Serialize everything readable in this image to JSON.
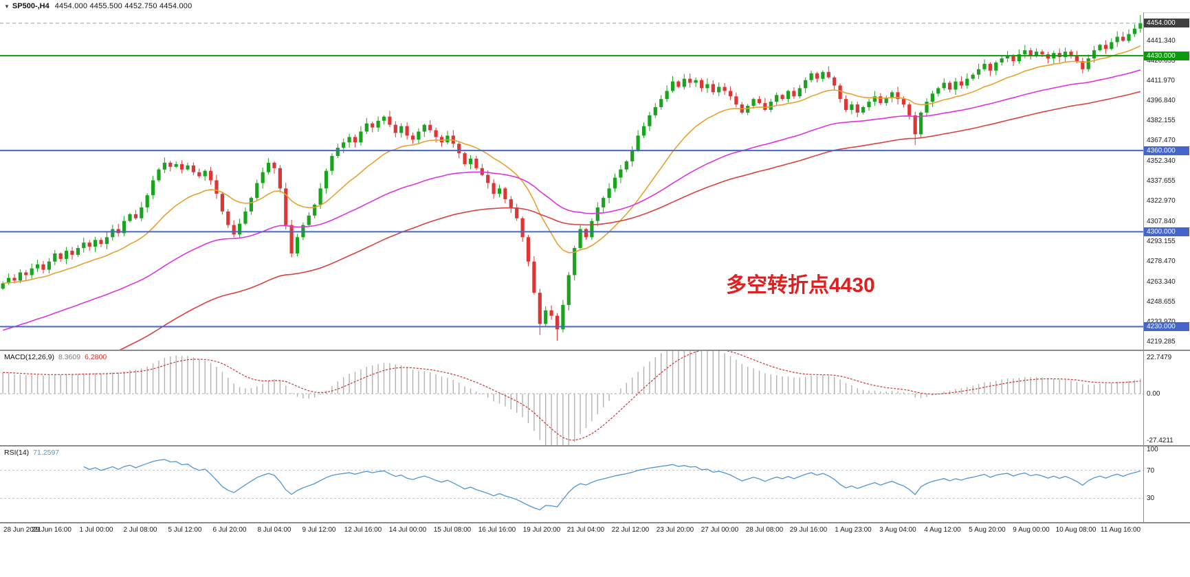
{
  "header": {
    "dropdown_icon": "▼",
    "title": "SP500-,H4",
    "ohlc": "4454.000 4455.500 4452.750 4454.000"
  },
  "main_chart": {
    "price_min": 4213,
    "price_max": 4462,
    "price_axis_labels": [
      "4441.340",
      "4426.655",
      "4411.970",
      "4396.840",
      "4382.155",
      "4367.470",
      "4352.340",
      "4337.655",
      "4322.970",
      "4307.840",
      "4293.155",
      "4278.470",
      "4263.340",
      "4248.655",
      "4233.970",
      "4219.285"
    ],
    "badges": [
      {
        "label": "4454.000",
        "price": 4454,
        "color": "#3f3f3f"
      },
      {
        "label": "4430.000",
        "price": 4430,
        "color": "#0a9a0a"
      },
      {
        "label": "4360.000",
        "price": 4360,
        "color": "#4466cc"
      },
      {
        "label": "4300.000",
        "price": 4300,
        "color": "#4466cc"
      },
      {
        "label": "4230.000",
        "price": 4230,
        "color": "#4466cc"
      }
    ],
    "hlines": [
      {
        "price": 4454,
        "color": "#7fa8d9",
        "width": 1,
        "dash": true
      },
      {
        "price": 4430,
        "color": "#0a9a0a",
        "width": 2,
        "dash": false
      },
      {
        "price": 4360,
        "color": "#4466cc",
        "width": 2,
        "dash": false
      },
      {
        "price": 4300,
        "color": "#4466cc",
        "width": 2,
        "dash": false
      },
      {
        "price": 4230,
        "color": "#4466cc",
        "width": 2,
        "dash": false
      }
    ],
    "annotation": {
      "text": "多空转折点4430",
      "color": "#e02020"
    }
  },
  "chart_data": {
    "type": "candlestick",
    "title": "SP500- H4",
    "up_color": "#18a41c",
    "down_color": "#dd3636",
    "first_open": 4258,
    "closes": [
      4262,
      4266,
      4264,
      4270,
      4268,
      4273,
      4276,
      4272,
      4278,
      4284,
      4280,
      4286,
      4283,
      4288,
      4292,
      4289,
      4294,
      4291,
      4296,
      4302,
      4299,
      4308,
      4313,
      4310,
      4318,
      4327,
      4338,
      4346,
      4351,
      4348,
      4350,
      4346,
      4349,
      4344,
      4341,
      4345,
      4338,
      4328,
      4315,
      4305,
      4298,
      4306,
      4315,
      4325,
      4336,
      4344,
      4351,
      4347,
      4332,
      4305,
      4284,
      4296,
      4305,
      4312,
      4320,
      4332,
      4345,
      4356,
      4362,
      4366,
      4370,
      4366,
      4374,
      4380,
      4377,
      4382,
      4385,
      4379,
      4373,
      4378,
      4371,
      4368,
      4374,
      4379,
      4375,
      4370,
      4366,
      4371,
      4365,
      4358,
      4350,
      4354,
      4347,
      4342,
      4336,
      4328,
      4332,
      4324,
      4318,
      4310,
      4296,
      4278,
      4255,
      4232,
      4242,
      4238,
      4228,
      4246,
      4268,
      4288,
      4302,
      4296,
      4308,
      4318,
      4325,
      4332,
      4340,
      4346,
      4352,
      4360,
      4371,
      4378,
      4386,
      4392,
      4398,
      4404,
      4411,
      4407,
      4413,
      4410,
      4412,
      4406,
      4409,
      4403,
      4407,
      4404,
      4400,
      4394,
      4388,
      4393,
      4398,
      4395,
      4390,
      4396,
      4401,
      4398,
      4404,
      4400,
      4406,
      4412,
      4417,
      4413,
      4418,
      4414,
      4408,
      4398,
      4390,
      4394,
      4388,
      4392,
      4396,
      4400,
      4395,
      4399,
      4403,
      4398,
      4394,
      4386,
      4372,
      4388,
      4396,
      4402,
      4406,
      4410,
      4405,
      4411,
      4408,
      4413,
      4416,
      4420,
      4424,
      4419,
      4425,
      4428,
      4430,
      4426,
      4431,
      4434,
      4430,
      4433,
      4431,
      4428,
      4432,
      4429,
      4433,
      4430,
      4426,
      4420,
      4428,
      4434,
      4438,
      4435,
      4440,
      4444,
      4441,
      4446,
      4450,
      4454
    ],
    "wick_overrides": {
      "93": {
        "low": 4224
      },
      "96": {
        "low": 4219.5
      },
      "158": {
        "low": 4364
      },
      "197": {
        "high": 4460,
        "low": 4447
      }
    },
    "moving_averages": [
      {
        "name": "fast-ma",
        "period": 18,
        "seed": 4262,
        "color": "#e8a02e"
      },
      {
        "name": "medium-ma",
        "period": 55,
        "seed": 4226,
        "color": "#dd33dd"
      },
      {
        "name": "slow-ma",
        "period": 90,
        "seed": 4170,
        "color": "#d94040"
      }
    ],
    "macd": {
      "label": "MACD(12,26,9)",
      "value_main": "8.3609",
      "value_signal": "6.2800",
      "ylim": [
        -27.4211,
        22.7479
      ],
      "axis_labels": [
        "22.7479",
        "0.00",
        "-27.4211"
      ],
      "bar_color": "#b2b2b2",
      "signal_color": "#cc3333"
    },
    "rsi": {
      "label": "RSI(14)",
      "value": "71.2597",
      "ylim": [
        0,
        100
      ],
      "levels": [
        100,
        70,
        30
      ],
      "axis_labels": [
        "100",
        "70",
        "30"
      ],
      "line_color": "#4f94d4"
    },
    "x_axis_labels": [
      "28 Jun 2021",
      "29 Jun 16:00",
      "1 Jul 00:00",
      "2 Jul 08:00",
      "5 Jul 12:00",
      "6 Jul 20:00",
      "8 Jul 04:00",
      "9 Jul 12:00",
      "12 Jul 16:00",
      "14 Jul 00:00",
      "15 Jul 08:00",
      "16 Jul 16:00",
      "19 Jul 20:00",
      "21 Jul 04:00",
      "22 Jul 12:00",
      "23 Jul 20:00",
      "27 Jul 00:00",
      "28 Jul 08:00",
      "29 Jul 16:00",
      "1 Aug 23:00",
      "3 Aug 04:00",
      "4 Aug 12:00",
      "5 Aug 20:00",
      "9 Aug 00:00",
      "10 Aug 08:00",
      "11 Aug 16:00"
    ]
  }
}
